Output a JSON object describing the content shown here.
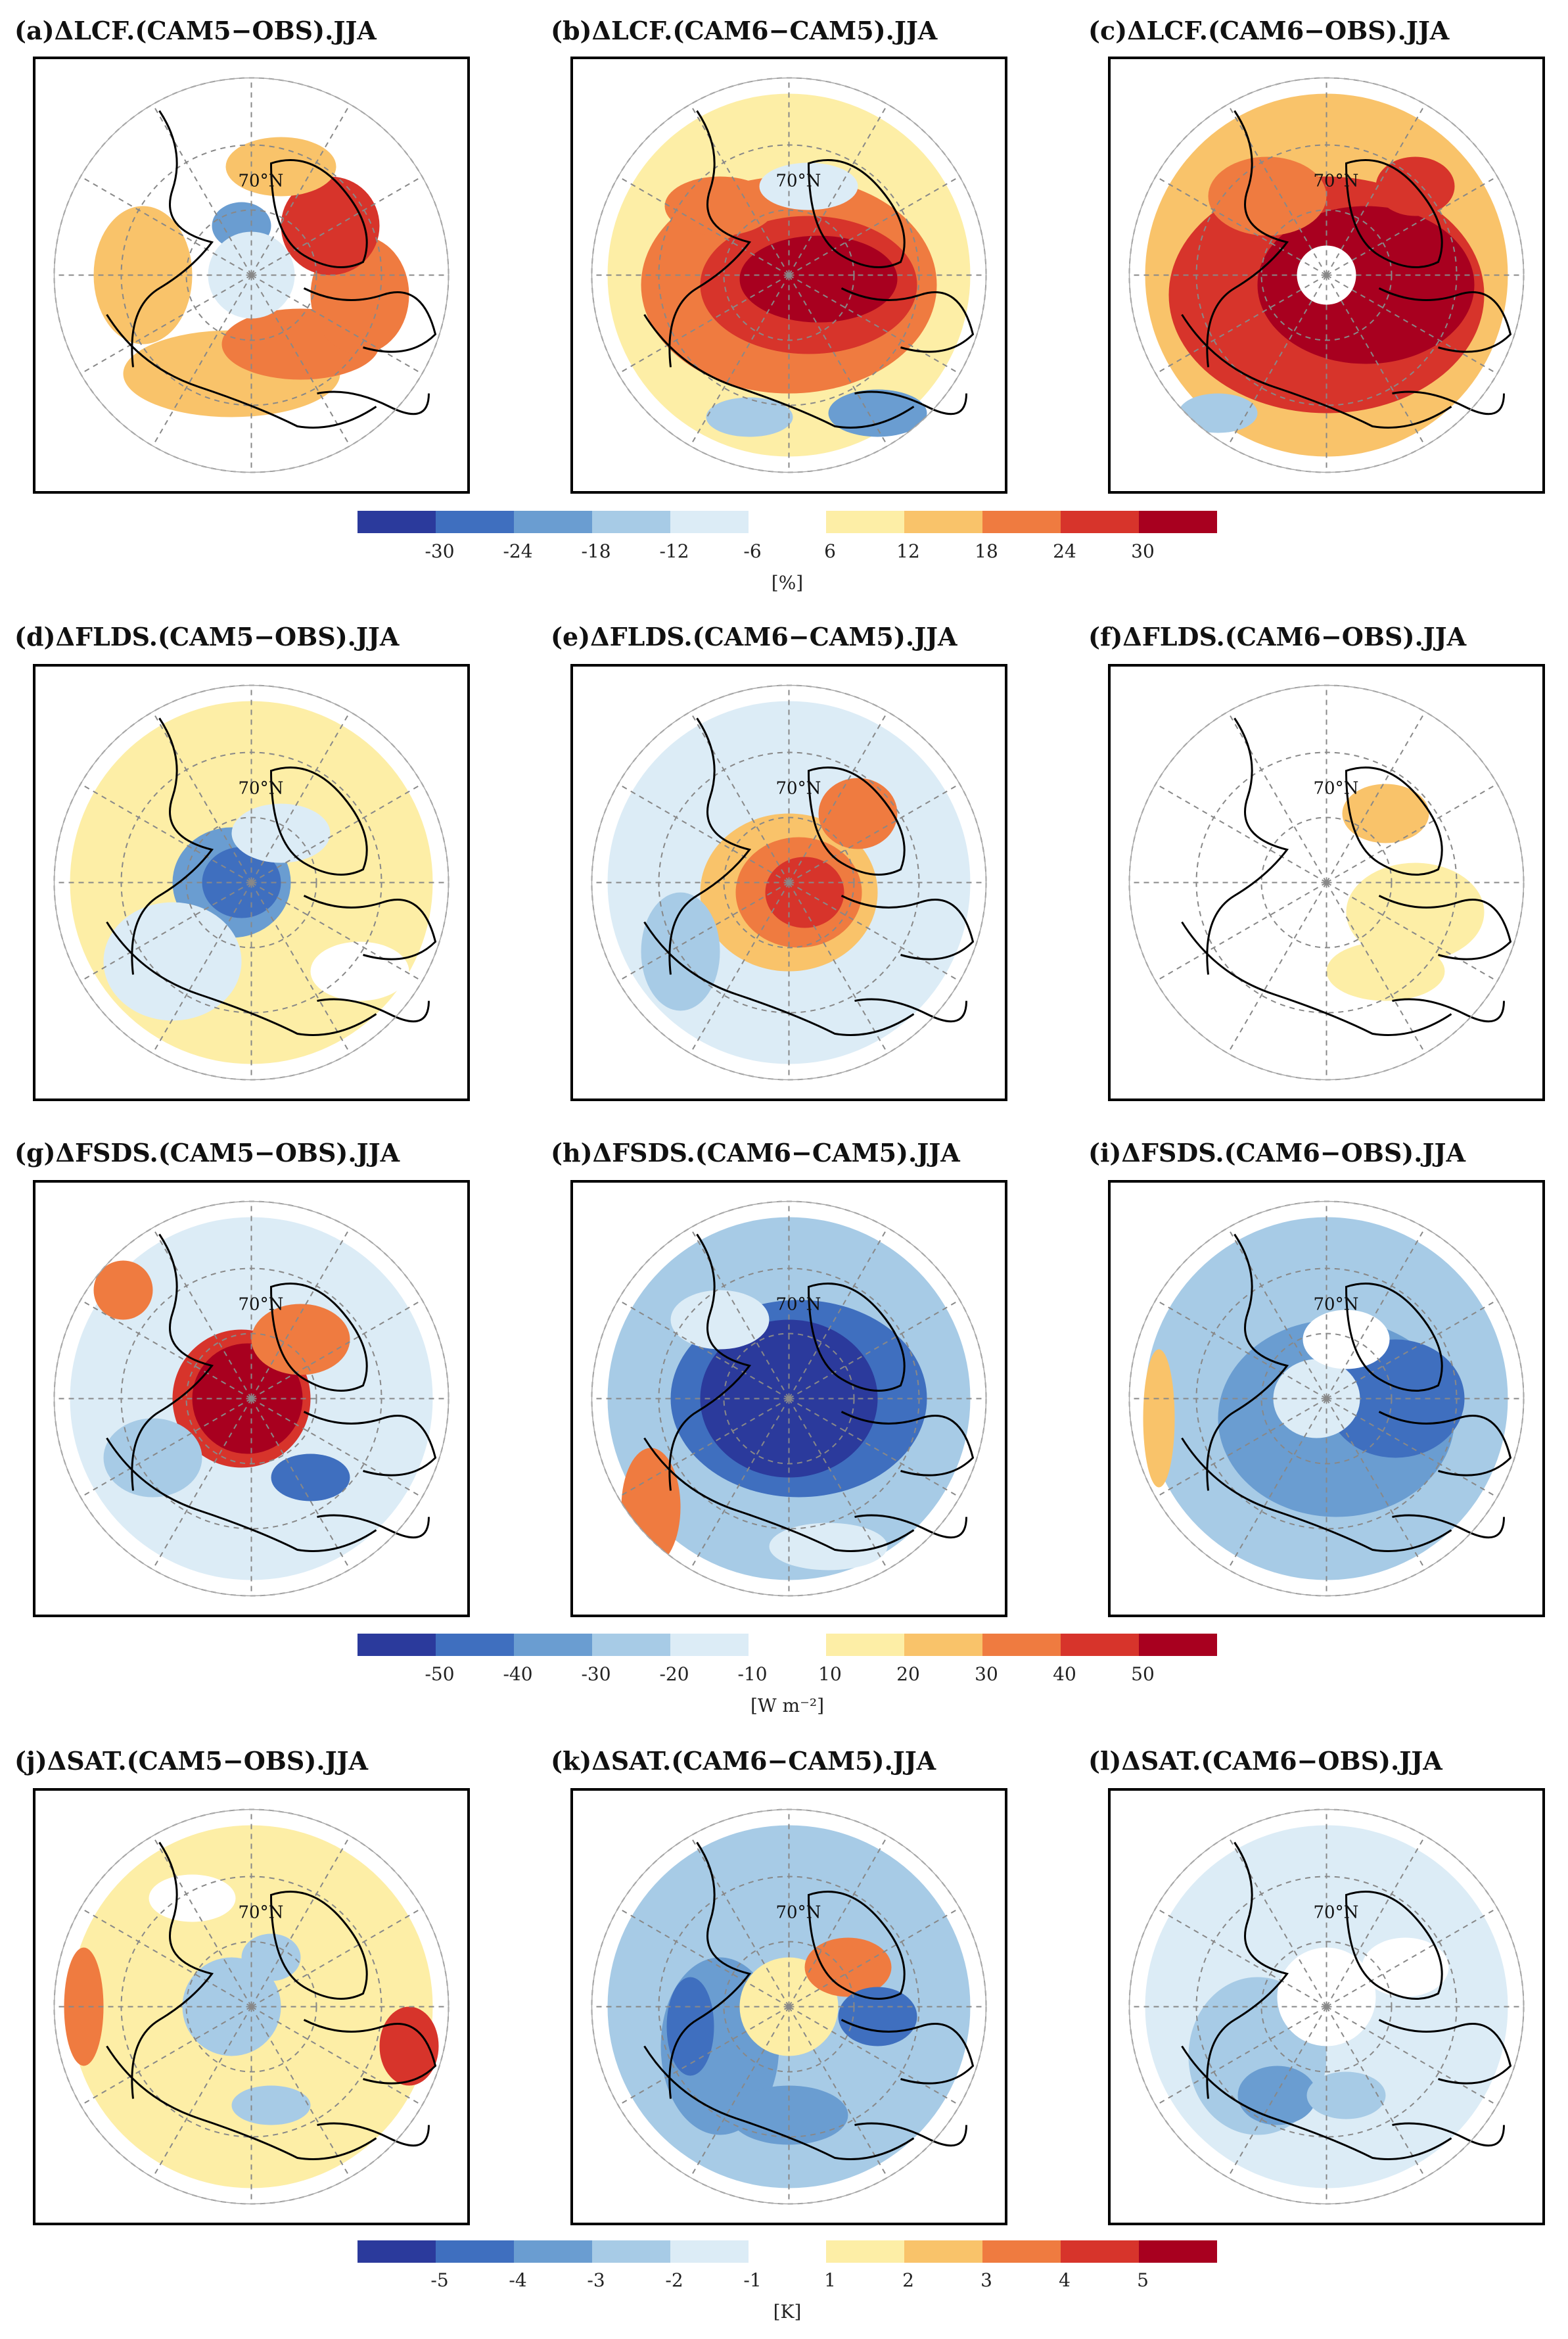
{
  "figure": {
    "season": "JJA",
    "lat_label": "70°N"
  },
  "colors": {
    "neg": [
      "#2b3a9c",
      "#3f6fbf",
      "#6a9dd1",
      "#a7cbe6",
      "#dcecf6"
    ],
    "pos": [
      "#fdeea6",
      "#f9c36a",
      "#ef7b40",
      "#d7342b",
      "#a8001f"
    ]
  },
  "rows": [
    {
      "variable": "LCF",
      "panels": [
        {
          "title": "(a)ΔLCF.(CAM5−OBS).JJA",
          "pattern": "lcf_cam5_obs"
        },
        {
          "title": "(b)ΔLCF.(CAM6−CAM5).JJA",
          "pattern": "lcf_cam6_cam5"
        },
        {
          "title": "(c)ΔLCF.(CAM6−OBS).JJA",
          "pattern": "lcf_cam6_obs"
        }
      ],
      "colorbar": {
        "ticks": [
          "-30",
          "-24",
          "-18",
          "-12",
          "-6",
          "6",
          "12",
          "18",
          "24",
          "30"
        ],
        "unit": "[%]"
      }
    },
    {
      "variable": "FLDS",
      "panels": [
        {
          "title": "(d)ΔFLDS.(CAM5−OBS).JJA",
          "pattern": "flds_cam5_obs"
        },
        {
          "title": "(e)ΔFLDS.(CAM6−CAM5).JJA",
          "pattern": "flds_cam6_cam5"
        },
        {
          "title": "(f)ΔFLDS.(CAM6−OBS).JJA",
          "pattern": "flds_cam6_obs"
        }
      ]
    },
    {
      "variable": "FSDS",
      "panels": [
        {
          "title": "(g)ΔFSDS.(CAM5−OBS).JJA",
          "pattern": "fsds_cam5_obs"
        },
        {
          "title": "(h)ΔFSDS.(CAM6−CAM5).JJA",
          "pattern": "fsds_cam6_cam5"
        },
        {
          "title": "(i)ΔFSDS.(CAM6−OBS).JJA",
          "pattern": "fsds_cam6_obs"
        }
      ],
      "colorbar": {
        "ticks": [
          "-50",
          "-40",
          "-30",
          "-20",
          "-10",
          "10",
          "20",
          "30",
          "40",
          "50"
        ],
        "unit": "[W m⁻²]"
      }
    },
    {
      "variable": "SAT",
      "panels": [
        {
          "title": "(j)ΔSAT.(CAM5−OBS).JJA",
          "pattern": "sat_cam5_obs"
        },
        {
          "title": "(k)ΔSAT.(CAM6−CAM5).JJA",
          "pattern": "sat_cam6_cam5"
        },
        {
          "title": "(l)ΔSAT.(CAM6−OBS).JJA",
          "pattern": "sat_cam6_obs"
        }
      ],
      "colorbar": {
        "ticks": [
          "-5",
          "-4",
          "-3",
          "-2",
          "-1",
          "1",
          "2",
          "3",
          "4",
          "5"
        ],
        "unit": "[K]"
      }
    }
  ]
}
